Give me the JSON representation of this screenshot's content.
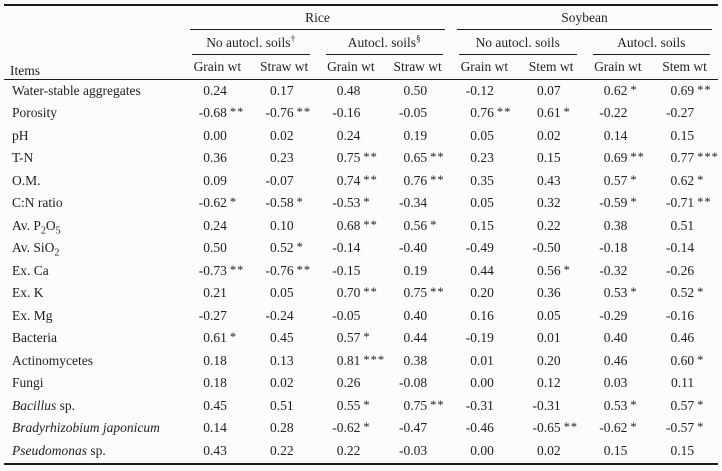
{
  "page": {
    "background": "#fcfcfa",
    "text_color": "#1f1f1f",
    "line_color": "#1a1a1a"
  },
  "table": {
    "items_header": "Items",
    "groups": [
      {
        "label": "Rice",
        "subgroups": [
          {
            "label": "No autocl. soils",
            "marker": "†"
          },
          {
            "label": "Autocl. soils",
            "marker": "§"
          }
        ]
      },
      {
        "label": "Soybean",
        "subgroups": [
          {
            "label": "No autocl. soils",
            "marker": ""
          },
          {
            "label": "Autocl. soils",
            "marker": ""
          }
        ]
      }
    ],
    "weight_headers": [
      "Grain wt",
      "Straw wt",
      "Grain wt",
      "Straw wt",
      "Grain wt",
      "Stem wt",
      "Grain wt",
      "Stem wt"
    ],
    "rows": [
      {
        "item": [
          {
            "t": "Water-stable aggregates"
          }
        ],
        "values": [
          "0.24",
          "0.17",
          "0.48",
          "0.50",
          "-0.12",
          "0.07",
          "0.62 *",
          "0.69 **"
        ]
      },
      {
        "item": [
          {
            "t": "Porosity"
          }
        ],
        "values": [
          "-0.68 **",
          "-0.76 **",
          "-0.16",
          "-0.05",
          "0.76 **",
          "0.61 *",
          "-0.22",
          "-0.27"
        ]
      },
      {
        "item": [
          {
            "t": "pH"
          }
        ],
        "values": [
          "0.00",
          "0.02",
          "0.24",
          "0.19",
          "0.05",
          "0.02",
          "0.14",
          "0.15"
        ]
      },
      {
        "item": [
          {
            "t": "T-N"
          }
        ],
        "values": [
          "0.36",
          "0.23",
          "0.75 **",
          "0.65 **",
          "0.23",
          "0.15",
          "0.69 **",
          "0.77 ***"
        ]
      },
      {
        "item": [
          {
            "t": "O.M."
          }
        ],
        "values": [
          "0.09",
          "-0.07",
          "0.74 **",
          "0.76 **",
          "0.35",
          "0.43",
          "0.57 *",
          "0.62 *"
        ]
      },
      {
        "item": [
          {
            "t": "C:N ratio"
          }
        ],
        "values": [
          "-0.62 *",
          "-0.58 *",
          "-0.53 *",
          "-0.34",
          "0.05",
          "0.32",
          "-0.59 *",
          "-0.71 **"
        ]
      },
      {
        "item": [
          {
            "t": "Av. P"
          },
          {
            "t": "2",
            "sub": true
          },
          {
            "t": "O"
          },
          {
            "t": "5",
            "sub": true
          }
        ],
        "values": [
          "0.24",
          "0.10",
          "0.68 **",
          "0.56 *",
          "0.15",
          "0.22",
          "0.38",
          "0.51"
        ]
      },
      {
        "item": [
          {
            "t": "Av. SiO"
          },
          {
            "t": "2",
            "sub": true
          }
        ],
        "values": [
          "0.50",
          "0.52 *",
          "-0.14",
          "-0.40",
          "-0.49",
          "-0.50",
          "-0.18",
          "-0.14"
        ]
      },
      {
        "item": [
          {
            "t": "Ex. Ca"
          }
        ],
        "values": [
          "-0.73 **",
          "-0.76 **",
          "-0.15",
          "0.19",
          "0.44",
          "0.56 *",
          "-0.32",
          "-0.26"
        ]
      },
      {
        "item": [
          {
            "t": "Ex. K"
          }
        ],
        "values": [
          "0.21",
          "0.05",
          "0.70 **",
          "0.75 **",
          "0.20",
          "0.36",
          "0.53 *",
          "0.52 *"
        ]
      },
      {
        "item": [
          {
            "t": "Ex. Mg"
          }
        ],
        "values": [
          "-0.27",
          "-0.24",
          "-0.05",
          "0.40",
          "0.16",
          "0.05",
          "-0.29",
          "-0.16"
        ]
      },
      {
        "item": [
          {
            "t": "Bacteria"
          }
        ],
        "values": [
          "0.61 *",
          "0.45",
          "0.57 *",
          "0.44",
          "-0.19",
          "0.01",
          "0.40",
          "0.46"
        ]
      },
      {
        "item": [
          {
            "t": "Actinomycetes"
          }
        ],
        "values": [
          "0.18",
          "0.13",
          "0.81 ***",
          "0.38",
          "0.01",
          "0.20",
          "0.46",
          "0.60 *"
        ]
      },
      {
        "item": [
          {
            "t": "Fungi"
          }
        ],
        "values": [
          "0.18",
          "0.02",
          "0.26",
          "-0.08",
          "0.00",
          "0.12",
          "0.03",
          "0.11"
        ]
      },
      {
        "item": [
          {
            "t": "Bacillus",
            "italic": true
          },
          {
            "t": " sp."
          }
        ],
        "values": [
          "0.45",
          "0.51",
          "0.55 *",
          "0.75 **",
          "-0.31",
          "-0.31",
          "0.53 *",
          "0.57 *"
        ]
      },
      {
        "item": [
          {
            "t": "Bradyrhizobium japonicum",
            "italic": true
          }
        ],
        "values": [
          "0.14",
          "0.28",
          "-0.62 *",
          "-0.47",
          "-0.46",
          "-0.65 **",
          "-0.62 *",
          "-0.57 *"
        ]
      },
      {
        "item": [
          {
            "t": "Pseudomonas",
            "italic": true
          },
          {
            "t": " sp."
          }
        ],
        "values": [
          "0.43",
          "0.22",
          "0.22",
          "-0.03",
          "0.00",
          "0.02",
          "0.15",
          "0.15"
        ]
      }
    ]
  }
}
